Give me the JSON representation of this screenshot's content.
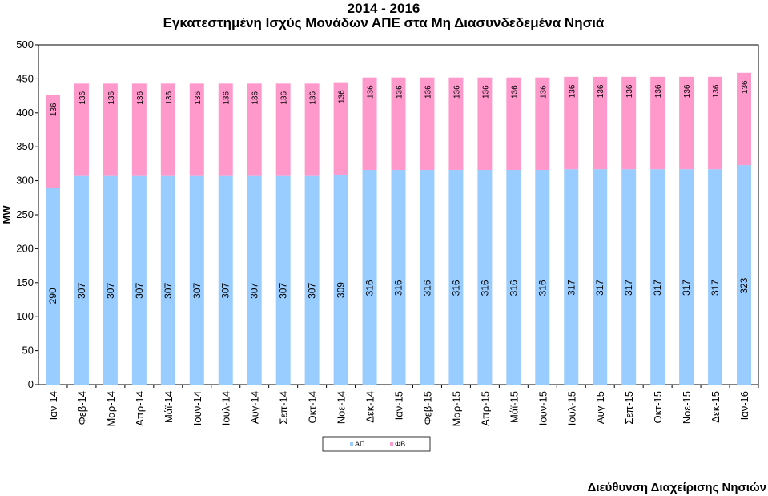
{
  "chart_data": {
    "type": "bar",
    "stacked": true,
    "title": "2014 - 2016",
    "subtitle": "Εγκατεστημένη Ισχύς Μονάδων ΑΠΕ στα Μη Διασυνδεδεμένα Νησιά",
    "xlabel": "",
    "ylabel": "MW",
    "ylim": [
      0,
      500
    ],
    "yticks": [
      0,
      50,
      100,
      150,
      200,
      250,
      300,
      350,
      400,
      450,
      500
    ],
    "grid": false,
    "legend": "bottom-center",
    "categories": [
      "Ιαν-14",
      "Φεβ-14",
      "Μαρ-14",
      "Απρ-14",
      "Μάϊ-14",
      "Ιουν-14",
      "Ιουλ-14",
      "Αυγ-14",
      "Σεπ-14",
      "Οκτ-14",
      "Νοε-14",
      "Δεκ-14",
      "Ιαν-15",
      "Φεβ-15",
      "Μαρ-15",
      "Απρ-15",
      "Μάϊ-15",
      "Ιουν-15",
      "Ιουλ-15",
      "Αυγ-15",
      "Σεπ-15",
      "Οκτ-15",
      "Νοε-15",
      "Δεκ-15",
      "Ιαν-16"
    ],
    "series": [
      {
        "name": "ΑΠ",
        "color": "#99ccff",
        "values": [
          290,
          307,
          307,
          307,
          307,
          307,
          307,
          307,
          307,
          307,
          309,
          316,
          316,
          316,
          316,
          316,
          316,
          316,
          317,
          317,
          317,
          317,
          317,
          317,
          323
        ]
      },
      {
        "name": "ΦΒ",
        "color": "#ff99cc",
        "values": [
          136,
          136,
          136,
          136,
          136,
          136,
          136,
          136,
          136,
          136,
          136,
          136,
          136,
          136,
          136,
          136,
          136,
          136,
          136,
          136,
          136,
          136,
          136,
          136,
          136
        ]
      }
    ]
  },
  "footer": "Διεύθυνση Διαχείρισης Νησιών"
}
